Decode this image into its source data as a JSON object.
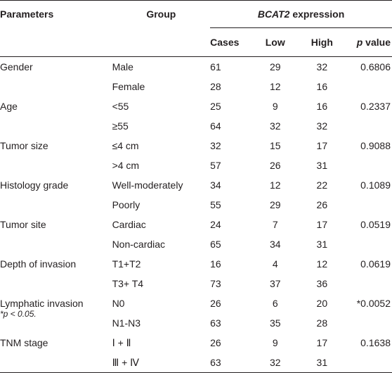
{
  "header": {
    "parameters": "Parameters",
    "group": "Group",
    "expression_gene": "BCAT2",
    "expression_word": " expression",
    "cases": "Cases",
    "low": "Low",
    "high": "High",
    "p_italic": "p",
    "p_rest": " value"
  },
  "rows": [
    {
      "param": "Gender",
      "group": "Male",
      "cases": "61",
      "low": "29",
      "high": "32",
      "p": "0.6806"
    },
    {
      "param": "",
      "group": "Female",
      "cases": "28",
      "low": "12",
      "high": "16",
      "p": ""
    },
    {
      "param": "Age",
      "group": "<55",
      "cases": "25",
      "low": "9",
      "high": "16",
      "p": "0.2337"
    },
    {
      "param": "",
      "group": "≥55",
      "cases": "64",
      "low": "32",
      "high": "32",
      "p": ""
    },
    {
      "param": "Tumor size",
      "group": "≤4 cm",
      "cases": "32",
      "low": "15",
      "high": "17",
      "p": "0.9088"
    },
    {
      "param": "",
      "group": ">4 cm",
      "cases": "57",
      "low": "26",
      "high": "31",
      "p": ""
    },
    {
      "param": "Histology grade",
      "group": "Well-moderately",
      "cases": "34",
      "low": "12",
      "high": "22",
      "p": "0.1089"
    },
    {
      "param": "",
      "group": "Poorly",
      "cases": "55",
      "low": "29",
      "high": "26",
      "p": ""
    },
    {
      "param": "Tumor site",
      "group": "Cardiac",
      "cases": "24",
      "low": "7",
      "high": "17",
      "p": "0.0519"
    },
    {
      "param": "",
      "group": "Non-cardiac",
      "cases": "65",
      "low": "34",
      "high": "31",
      "p": ""
    },
    {
      "param": "Depth of invasion",
      "group": "T1+T2",
      "cases": "16",
      "low": "4",
      "high": "12",
      "p": "0.0619"
    },
    {
      "param": "",
      "group": "T3+ T4",
      "cases": "73",
      "low": "37",
      "high": "36",
      "p": ""
    },
    {
      "param": "Lymphatic invasion",
      "group": "N0",
      "cases": "26",
      "low": "6",
      "high": "20",
      "p": "*0.0052"
    },
    {
      "param": "",
      "group": "N1-N3",
      "cases": "63",
      "low": "35",
      "high": "28",
      "p": ""
    },
    {
      "param": "TNM stage",
      "group": "Ⅰ + Ⅱ",
      "cases": "26",
      "low": "9",
      "high": "17",
      "p": "0.1638"
    },
    {
      "param": "",
      "group": "Ⅲ + Ⅳ",
      "cases": "63",
      "low": "32",
      "high": "31",
      "p": ""
    }
  ],
  "footnote": {
    "star": "*p",
    "rest": " < 0.05."
  }
}
